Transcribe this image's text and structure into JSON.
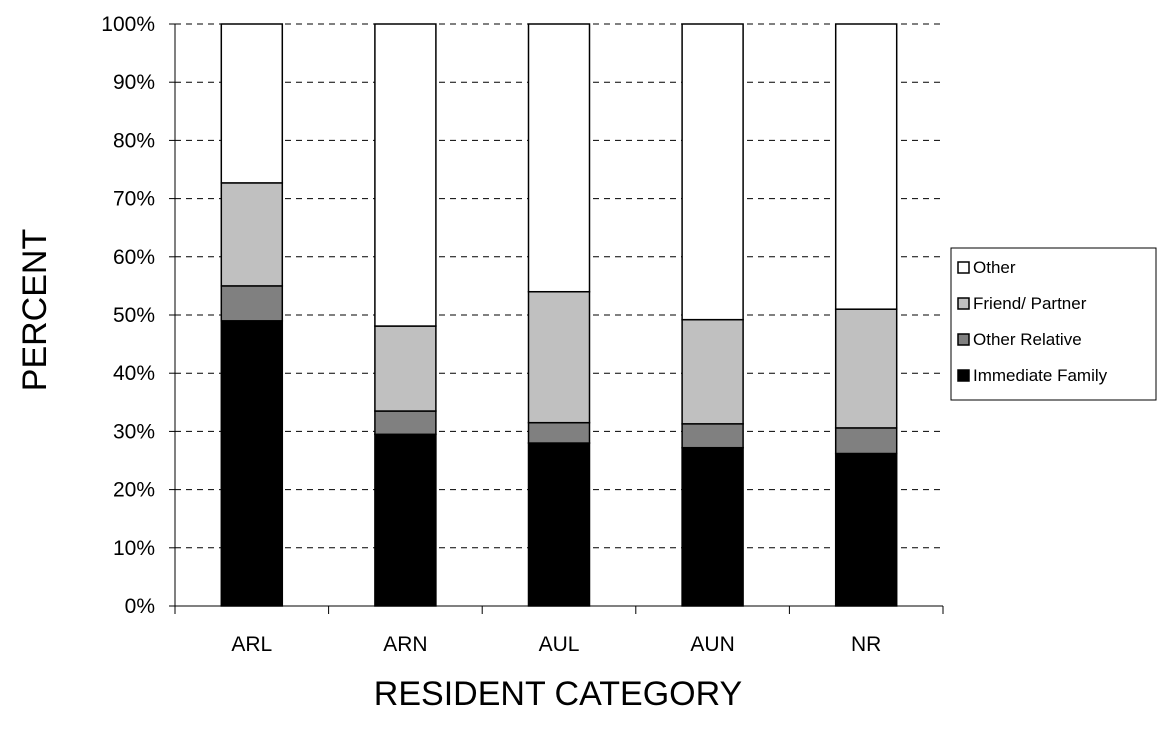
{
  "chart_data": {
    "type": "bar",
    "stacked": "percent",
    "title": "",
    "xlabel": "RESIDENT CATEGORY",
    "ylabel": "PERCENT",
    "ylim": [
      0,
      100
    ],
    "y_ticks": [
      "0%",
      "10%",
      "20%",
      "30%",
      "40%",
      "50%",
      "60%",
      "70%",
      "80%",
      "90%",
      "100%"
    ],
    "grid": "horizontal dashed",
    "legend_position": "right",
    "categories": [
      "ARL",
      "ARN",
      "AUL",
      "AUN",
      "NR"
    ],
    "series": [
      {
        "name": "Immediate Family",
        "color": "#000000",
        "values": [
          49,
          29.5,
          28,
          27.2,
          26.2
        ]
      },
      {
        "name": "Other Relative",
        "color": "#808080",
        "values": [
          6,
          4,
          3.5,
          4.1,
          4.4
        ]
      },
      {
        "name": "Friend/ Partner",
        "color": "#c0c0c0",
        "values": [
          17.7,
          14.6,
          22.5,
          17.9,
          20.4
        ]
      },
      {
        "name": "Other",
        "color": "#ffffff",
        "values": [
          27.3,
          51.9,
          46,
          50.8,
          49
        ]
      }
    ]
  }
}
